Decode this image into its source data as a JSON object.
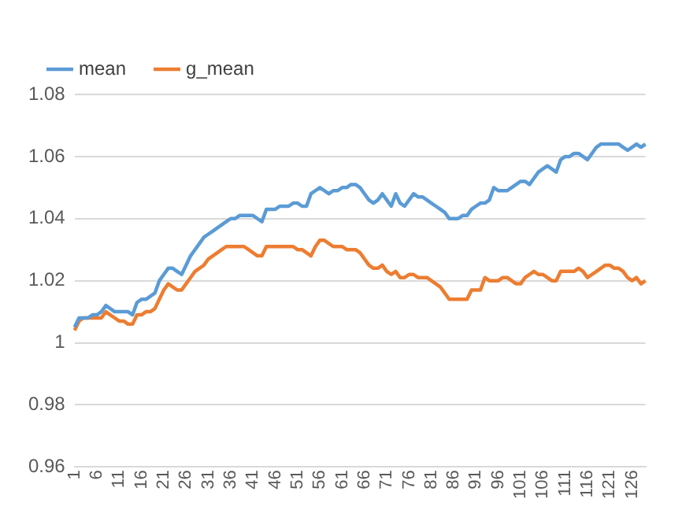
{
  "chart_data": {
    "type": "line",
    "categories": [
      "1",
      null,
      null,
      null,
      null,
      "6",
      null,
      null,
      null,
      null,
      "11",
      null,
      null,
      null,
      null,
      "16",
      null,
      null,
      null,
      null,
      "21",
      null,
      null,
      null,
      null,
      "26",
      null,
      null,
      null,
      null,
      "31",
      null,
      null,
      null,
      null,
      "36",
      null,
      null,
      null,
      null,
      "41",
      null,
      null,
      null,
      null,
      "46",
      null,
      null,
      null,
      null,
      "51",
      null,
      null,
      null,
      null,
      "56",
      null,
      null,
      null,
      null,
      "61",
      null,
      null,
      null,
      null,
      "66",
      null,
      null,
      null,
      null,
      "71",
      null,
      null,
      null,
      null,
      "76",
      null,
      null,
      null,
      null,
      "81",
      null,
      null,
      null,
      null,
      "86",
      null,
      null,
      null,
      null,
      "91",
      null,
      null,
      null,
      null,
      "96",
      null,
      null,
      null,
      null,
      "101",
      null,
      null,
      null,
      null,
      "106",
      null,
      null,
      null,
      null,
      "111",
      null,
      null,
      null,
      null,
      "116",
      null,
      null,
      null,
      null,
      "121",
      null,
      null,
      null,
      null,
      "126",
      null,
      null,
      null
    ],
    "series": [
      {
        "name": "mean",
        "color": "#5b9bd5",
        "values": [
          1.005,
          1.008,
          1.008,
          1.008,
          1.009,
          1.009,
          1.01,
          1.012,
          1.011,
          1.01,
          1.01,
          1.01,
          1.01,
          1.009,
          1.013,
          1.014,
          1.014,
          1.015,
          1.016,
          1.02,
          1.022,
          1.024,
          1.024,
          1.023,
          1.022,
          1.025,
          1.028,
          1.03,
          1.032,
          1.034,
          1.035,
          1.036,
          1.037,
          1.038,
          1.039,
          1.04,
          1.04,
          1.041,
          1.041,
          1.041,
          1.041,
          1.04,
          1.039,
          1.043,
          1.043,
          1.043,
          1.044,
          1.044,
          1.044,
          1.045,
          1.045,
          1.044,
          1.044,
          1.048,
          1.049,
          1.05,
          1.049,
          1.048,
          1.049,
          1.049,
          1.05,
          1.05,
          1.051,
          1.051,
          1.05,
          1.048,
          1.046,
          1.045,
          1.046,
          1.048,
          1.046,
          1.044,
          1.048,
          1.045,
          1.044,
          1.046,
          1.048,
          1.047,
          1.047,
          1.046,
          1.045,
          1.044,
          1.043,
          1.042,
          1.04,
          1.04,
          1.04,
          1.041,
          1.041,
          1.043,
          1.044,
          1.045,
          1.045,
          1.046,
          1.05,
          1.049,
          1.049,
          1.049,
          1.05,
          1.051,
          1.052,
          1.052,
          1.051,
          1.053,
          1.055,
          1.056,
          1.057,
          1.056,
          1.055,
          1.059,
          1.06,
          1.06,
          1.061,
          1.061,
          1.06,
          1.059,
          1.061,
          1.063,
          1.064,
          1.064,
          1.064,
          1.064,
          1.064,
          1.063,
          1.062,
          1.063,
          1.064,
          1.063,
          1.064
        ]
      },
      {
        "name": "g_mean",
        "color": "#ed7d31",
        "values": [
          1.004,
          1.007,
          1.008,
          1.008,
          1.008,
          1.008,
          1.008,
          1.01,
          1.009,
          1.008,
          1.007,
          1.007,
          1.006,
          1.006,
          1.009,
          1.009,
          1.01,
          1.01,
          1.011,
          1.014,
          1.017,
          1.019,
          1.018,
          1.017,
          1.017,
          1.019,
          1.021,
          1.023,
          1.024,
          1.025,
          1.027,
          1.028,
          1.029,
          1.03,
          1.031,
          1.031,
          1.031,
          1.031,
          1.031,
          1.03,
          1.029,
          1.028,
          1.028,
          1.031,
          1.031,
          1.031,
          1.031,
          1.031,
          1.031,
          1.031,
          1.03,
          1.03,
          1.029,
          1.028,
          1.031,
          1.033,
          1.033,
          1.032,
          1.031,
          1.031,
          1.031,
          1.03,
          1.03,
          1.03,
          1.029,
          1.027,
          1.025,
          1.024,
          1.024,
          1.025,
          1.023,
          1.022,
          1.023,
          1.021,
          1.021,
          1.022,
          1.022,
          1.021,
          1.021,
          1.021,
          1.02,
          1.019,
          1.018,
          1.016,
          1.014,
          1.014,
          1.014,
          1.014,
          1.014,
          1.017,
          1.017,
          1.017,
          1.021,
          1.02,
          1.02,
          1.02,
          1.021,
          1.021,
          1.02,
          1.019,
          1.019,
          1.021,
          1.022,
          1.023,
          1.022,
          1.022,
          1.021,
          1.02,
          1.02,
          1.023,
          1.023,
          1.023,
          1.023,
          1.024,
          1.023,
          1.021,
          1.022,
          1.023,
          1.024,
          1.025,
          1.025,
          1.024,
          1.024,
          1.023,
          1.021,
          1.02,
          1.021,
          1.019,
          1.02
        ]
      }
    ],
    "ylim": [
      0.96,
      1.08
    ],
    "yticks": [
      0.96,
      0.98,
      1,
      1.02,
      1.04,
      1.06,
      1.08
    ],
    "grid": "y",
    "legend": "top",
    "marker": "none",
    "line_style": "solid"
  }
}
